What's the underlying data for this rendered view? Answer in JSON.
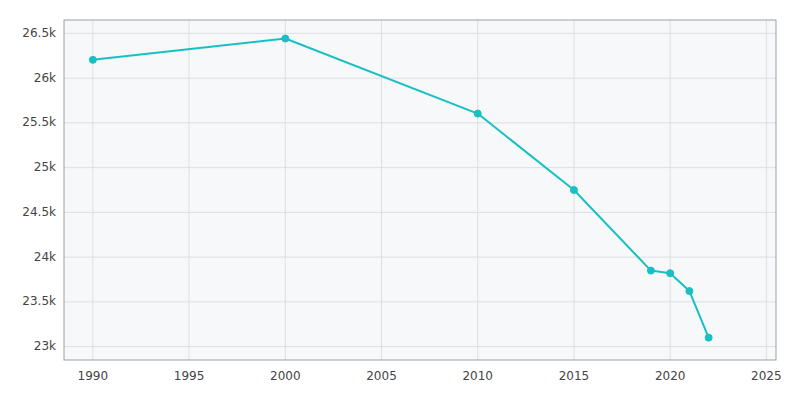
{
  "chart_data": {
    "type": "line",
    "x": [
      1990,
      2000,
      2010,
      2015,
      2019,
      2020,
      2021,
      2022
    ],
    "values": [
      26205,
      26443,
      25604,
      24750,
      23849,
      23820,
      23620,
      23100
    ],
    "color": "#18c0c4",
    "marker": "circle",
    "xlim": [
      1988.5,
      2025.5
    ],
    "ylim": [
      22850,
      26650
    ],
    "xticks": [
      1990,
      1995,
      2000,
      2005,
      2010,
      2015,
      2020,
      2025
    ],
    "yticks": [
      {
        "value": 23000,
        "label": "23k"
      },
      {
        "value": 23500,
        "label": "23.5k"
      },
      {
        "value": 24000,
        "label": "24k"
      },
      {
        "value": 24500,
        "label": "24.5k"
      },
      {
        "value": 25000,
        "label": "25k"
      },
      {
        "value": 25500,
        "label": "25.5k"
      },
      {
        "value": 26000,
        "label": "26k"
      },
      {
        "value": 26500,
        "label": "26.5k"
      }
    ],
    "grid": true
  }
}
